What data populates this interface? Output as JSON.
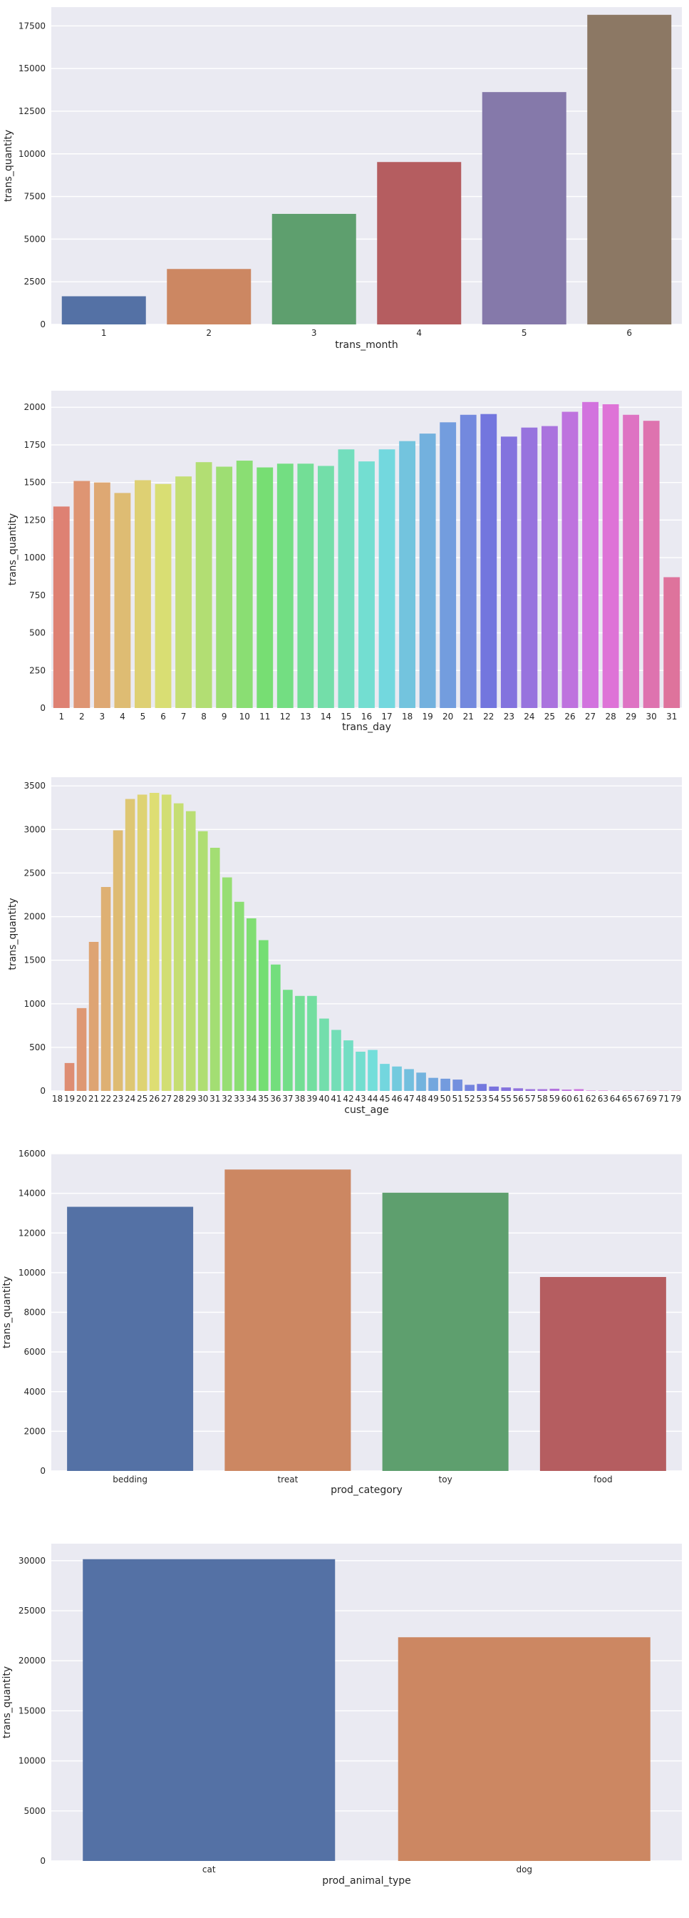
{
  "chart_data": [
    {
      "type": "bar",
      "xlabel": "trans_month",
      "ylabel": "trans_quantity",
      "categories": [
        "1",
        "2",
        "3",
        "4",
        "5",
        "6"
      ],
      "values": [
        1650,
        3250,
        6480,
        9520,
        13620,
        18150
      ],
      "ylim": [
        0,
        18600
      ],
      "yticks": [
        0,
        2500,
        5000,
        7500,
        10000,
        12500,
        15000,
        17500
      ],
      "palette": "deep",
      "grid": true
    },
    {
      "type": "bar",
      "xlabel": "trans_day",
      "ylabel": "trans_quantity",
      "categories": [
        "1",
        "2",
        "3",
        "4",
        "5",
        "6",
        "7",
        "8",
        "9",
        "10",
        "11",
        "12",
        "13",
        "14",
        "15",
        "16",
        "17",
        "18",
        "19",
        "20",
        "21",
        "22",
        "23",
        "24",
        "25",
        "26",
        "27",
        "28",
        "29",
        "30",
        "31"
      ],
      "values": [
        1340,
        1510,
        1500,
        1430,
        1515,
        1490,
        1540,
        1635,
        1605,
        1645,
        1600,
        1625,
        1625,
        1610,
        1720,
        1640,
        1720,
        1775,
        1825,
        1900,
        1950,
        1955,
        1805,
        1865,
        1875,
        1970,
        2035,
        2020,
        1950,
        1910,
        870
      ],
      "ylim": [
        0,
        2110
      ],
      "yticks": [
        0,
        250,
        500,
        750,
        1000,
        1250,
        1500,
        1750,
        2000
      ],
      "palette": "husl",
      "grid": true
    },
    {
      "type": "bar",
      "xlabel": "cust_age",
      "ylabel": "trans_quantity",
      "categories": [
        "18",
        "19",
        "20",
        "21",
        "22",
        "23",
        "24",
        "25",
        "26",
        "27",
        "28",
        "29",
        "30",
        "31",
        "32",
        "33",
        "34",
        "35",
        "36",
        "37",
        "38",
        "39",
        "40",
        "41",
        "42",
        "43",
        "44",
        "45",
        "46",
        "47",
        "48",
        "49",
        "50",
        "51",
        "52",
        "53",
        "54",
        "55",
        "56",
        "57",
        "58",
        "59",
        "60",
        "61",
        "62",
        "63",
        "64",
        "65",
        "67",
        "69",
        "71",
        "79"
      ],
      "values": [
        0,
        320,
        950,
        1710,
        2340,
        2990,
        3350,
        3400,
        3420,
        3400,
        3300,
        3210,
        2980,
        2790,
        2450,
        2170,
        1980,
        1730,
        1450,
        1160,
        1090,
        1090,
        830,
        700,
        580,
        450,
        470,
        310,
        280,
        250,
        210,
        150,
        140,
        130,
        70,
        80,
        50,
        40,
        30,
        20,
        20,
        25,
        15,
        20,
        5,
        5,
        3,
        3,
        3,
        3,
        3,
        3
      ],
      "ylim": [
        0,
        3600
      ],
      "yticks": [
        0,
        500,
        1000,
        1500,
        2000,
        2500,
        3000,
        3500
      ],
      "palette": "husl",
      "grid": true
    },
    {
      "type": "bar",
      "xlabel": "prod_category",
      "ylabel": "trans_quantity",
      "categories": [
        "bedding",
        "treat",
        "toy",
        "food"
      ],
      "values": [
        13320,
        15200,
        14030,
        9780
      ],
      "ylim": [
        0,
        16000
      ],
      "yticks": [
        0,
        2000,
        4000,
        6000,
        8000,
        10000,
        12000,
        14000,
        16000
      ],
      "palette": "deep",
      "grid": true
    },
    {
      "type": "bar",
      "xlabel": "prod_animal_type",
      "ylabel": "trans_quantity",
      "categories": [
        "cat",
        "dog"
      ],
      "values": [
        30150,
        22350
      ],
      "ylim": [
        0,
        31700
      ],
      "yticks": [
        0,
        5000,
        10000,
        15000,
        20000,
        25000,
        30000
      ],
      "palette": "deep",
      "grid": true
    }
  ],
  "colors": {
    "plot_background": "#eaeaf2",
    "grid": "#ffffff",
    "deep_palette": [
      "#5471a5",
      "#cc8762",
      "#5e9f6e",
      "#b55d60",
      "#8579aa",
      "#8c7864"
    ]
  }
}
